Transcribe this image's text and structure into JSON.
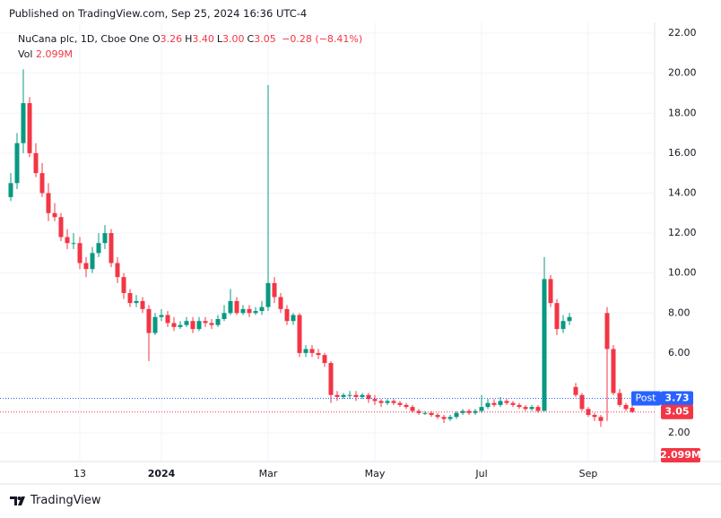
{
  "header": "Published on TradingView.com, Sep 25, 2024 16:36 UTC-4",
  "footer": "TradingView",
  "chart_data": {
    "type": "candlestick",
    "title": "NuCana plc, 1D, Cboe One",
    "ohlc_legend": [
      {
        "key": "O",
        "value": "3.26"
      },
      {
        "key": "H",
        "value": "3.40"
      },
      {
        "key": "L",
        "value": "3.00"
      },
      {
        "key": "C",
        "value": "3.05"
      }
    ],
    "change": "−0.28 (−8.41%)",
    "volume_legend": {
      "key": "Vol",
      "value": "2.099M"
    },
    "up_color": "#089981",
    "down_color": "#f23645",
    "categories": [
      null,
      null,
      null,
      null,
      null,
      null,
      null,
      null,
      null,
      null,
      null,
      "13",
      null,
      null,
      null,
      null,
      null,
      null,
      null,
      null,
      null,
      null,
      null,
      null,
      "2024",
      null,
      null,
      null,
      null,
      null,
      null,
      null,
      null,
      null,
      null,
      null,
      null,
      null,
      null,
      null,
      null,
      "Mar",
      null,
      null,
      null,
      null,
      null,
      null,
      null,
      null,
      null,
      null,
      null,
      null,
      null,
      null,
      null,
      null,
      "May",
      null,
      null,
      null,
      null,
      null,
      null,
      null,
      null,
      null,
      null,
      null,
      null,
      null,
      null,
      null,
      null,
      "Jul",
      null,
      null,
      null,
      null,
      null,
      null,
      null,
      null,
      null,
      null,
      null,
      null,
      null,
      null,
      null,
      null,
      "Sep",
      null,
      null,
      null,
      null,
      null,
      null,
      null
    ],
    "open": [
      13.8,
      14.5,
      16.5,
      18.5,
      16.0,
      15.0,
      14.0,
      13.0,
      12.8,
      11.8,
      11.5,
      11.5,
      10.5,
      10.2,
      11.0,
      11.5,
      12.0,
      10.5,
      9.8,
      9.0,
      8.5,
      8.6,
      8.2,
      7.0,
      7.8,
      7.9,
      7.5,
      7.3,
      7.4,
      7.6,
      7.2,
      7.6,
      7.5,
      7.4,
      7.7,
      8.0,
      8.6,
      8.0,
      8.2,
      8.0,
      8.1,
      8.3,
      9.5,
      8.8,
      8.2,
      7.6,
      7.9,
      6.0,
      6.2,
      6.0,
      5.9,
      5.5,
      3.9,
      3.8,
      3.9,
      3.9,
      3.8,
      3.9,
      3.7,
      3.6,
      3.5,
      3.6,
      3.5,
      3.4,
      3.3,
      3.1,
      3.0,
      3.0,
      2.9,
      2.8,
      2.7,
      2.8,
      3.0,
      3.1,
      3.0,
      3.1,
      3.3,
      3.5,
      3.4,
      3.6,
      3.5,
      3.4,
      3.3,
      3.2,
      3.3,
      3.1,
      9.7,
      8.5,
      7.2,
      7.6,
      4.3,
      3.9,
      3.2,
      2.9,
      2.8,
      8.0,
      6.2,
      4.0,
      3.4,
      3.26
    ],
    "high": [
      15.0,
      17.0,
      20.2,
      18.8,
      16.5,
      15.5,
      14.5,
      13.5,
      13.0,
      12.2,
      12.0,
      11.8,
      10.8,
      11.3,
      12.0,
      12.4,
      12.2,
      10.8,
      10.0,
      9.2,
      8.9,
      8.8,
      8.4,
      8.0,
      8.2,
      8.1,
      7.8,
      7.6,
      7.8,
      7.8,
      7.8,
      7.8,
      7.7,
      7.9,
      8.4,
      9.2,
      8.8,
      8.4,
      8.4,
      8.3,
      8.6,
      19.4,
      9.8,
      9.0,
      8.4,
      8.0,
      8.0,
      6.4,
      6.4,
      6.2,
      6.0,
      5.6,
      4.1,
      4.0,
      4.1,
      4.1,
      4.0,
      4.0,
      3.9,
      3.7,
      3.7,
      3.7,
      3.6,
      3.5,
      3.4,
      3.2,
      3.1,
      3.1,
      3.0,
      2.9,
      2.9,
      3.1,
      3.2,
      3.2,
      3.2,
      3.9,
      3.7,
      3.7,
      3.8,
      3.7,
      3.6,
      3.5,
      3.4,
      3.4,
      3.4,
      10.8,
      9.9,
      8.7,
      7.9,
      8.0,
      4.5,
      4.0,
      3.3,
      3.0,
      2.9,
      8.3,
      6.4,
      4.2,
      3.5,
      3.4
    ],
    "low": [
      13.6,
      14.2,
      16.0,
      15.8,
      14.8,
      13.8,
      12.6,
      12.6,
      11.6,
      11.2,
      11.2,
      10.2,
      9.8,
      10.0,
      10.8,
      11.2,
      10.3,
      9.5,
      8.7,
      8.3,
      8.3,
      8.0,
      5.6,
      6.9,
      7.6,
      7.3,
      7.1,
      7.2,
      7.3,
      7.0,
      7.1,
      7.3,
      7.2,
      7.3,
      7.6,
      7.9,
      7.9,
      7.9,
      7.8,
      7.9,
      7.9,
      8.1,
      8.5,
      8.0,
      7.4,
      7.4,
      5.8,
      5.8,
      5.8,
      5.7,
      5.3,
      3.5,
      3.6,
      3.7,
      3.7,
      3.6,
      3.7,
      3.5,
      3.4,
      3.3,
      3.4,
      3.4,
      3.3,
      3.2,
      3.0,
      2.9,
      2.9,
      2.8,
      2.7,
      2.5,
      2.6,
      2.7,
      2.9,
      2.9,
      2.9,
      3.0,
      3.2,
      3.3,
      3.3,
      3.4,
      3.3,
      3.2,
      3.1,
      3.1,
      3.0,
      3.1,
      8.3,
      6.9,
      7.0,
      7.4,
      3.8,
      3.1,
      2.8,
      2.6,
      2.3,
      2.6,
      3.9,
      3.3,
      3.1,
      3.0
    ],
    "close": [
      14.5,
      16.5,
      18.5,
      16.0,
      15.0,
      14.0,
      13.0,
      12.8,
      11.8,
      11.5,
      11.5,
      10.5,
      10.2,
      11.0,
      11.5,
      12.0,
      10.5,
      9.8,
      9.0,
      8.5,
      8.6,
      8.2,
      7.0,
      7.8,
      7.9,
      7.5,
      7.3,
      7.4,
      7.6,
      7.2,
      7.6,
      7.5,
      7.4,
      7.7,
      8.0,
      8.6,
      8.0,
      8.2,
      8.0,
      8.1,
      8.3,
      9.5,
      8.8,
      8.2,
      7.6,
      7.9,
      6.0,
      6.2,
      6.0,
      5.9,
      5.5,
      3.9,
      3.8,
      3.9,
      3.9,
      3.8,
      3.9,
      3.7,
      3.6,
      3.5,
      3.6,
      3.5,
      3.4,
      3.3,
      3.1,
      3.0,
      3.0,
      2.9,
      2.8,
      2.7,
      2.8,
      3.0,
      3.1,
      3.0,
      3.1,
      3.3,
      3.5,
      3.4,
      3.6,
      3.5,
      3.4,
      3.3,
      3.2,
      3.3,
      3.1,
      9.7,
      8.5,
      7.2,
      7.6,
      7.8,
      3.9,
      3.2,
      2.9,
      2.8,
      2.6,
      6.2,
      4.0,
      3.4,
      3.2,
      3.05
    ],
    "ylim": [
      0.57,
      22.54
    ],
    "yticks": [
      {
        "value": 2,
        "label": "2.00"
      },
      {
        "value": 6,
        "label": "6.00"
      },
      {
        "value": 8,
        "label": "8.00"
      },
      {
        "value": 10,
        "label": "10.00"
      },
      {
        "value": 12,
        "label": "12.00"
      },
      {
        "value": 14,
        "label": "14.00"
      },
      {
        "value": 16,
        "label": "16.00"
      },
      {
        "value": 18,
        "label": "18.00"
      },
      {
        "value": 20,
        "label": "20.00"
      },
      {
        "value": 22,
        "label": "22.00"
      }
    ],
    "grid": true,
    "price_lines": [
      {
        "name": "Post",
        "value": 3.73,
        "label": "3.73",
        "color": "#2962ff"
      },
      {
        "value": 3.05,
        "label": "3.05",
        "color": "#f23645"
      }
    ]
  }
}
